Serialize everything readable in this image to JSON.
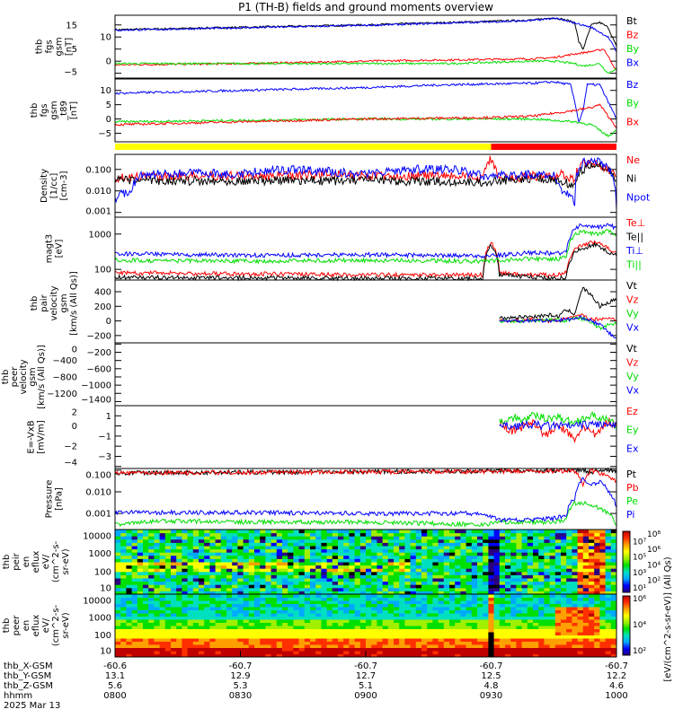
{
  "title": "P1 (TH-B) fields and ground moments overview",
  "colors": {
    "black": "#000000",
    "red": "#ff0000",
    "green": "#00dd00",
    "blue": "#0000ff",
    "yellow": "#ffff00"
  },
  "chart_data": [
    {
      "type": "line",
      "ylabel": [
        "thb",
        "fgs",
        "gsm",
        "[nT]"
      ],
      "ylim": [
        -7,
        19
      ],
      "yticks": [
        -5,
        0,
        5,
        10,
        15
      ],
      "log": false,
      "series": [
        {
          "name": "Bt",
          "color": "#000000",
          "x": [
            0,
            30,
            60,
            80,
            100,
            105,
            108,
            110,
            111,
            112,
            114,
            116,
            118,
            120
          ],
          "y": [
            13,
            14,
            15,
            16,
            17,
            18,
            17,
            16,
            8,
            5,
            15,
            16,
            14,
            6
          ]
        },
        {
          "name": "Bz",
          "color": "#ff0000",
          "x": [
            0,
            30,
            60,
            80,
            100,
            105,
            110,
            114,
            117,
            120
          ],
          "y": [
            -1.5,
            -1,
            0,
            0.5,
            1,
            1.5,
            3,
            4,
            5,
            -4
          ]
        },
        {
          "name": "By",
          "color": "#00dd00",
          "x": [
            0,
            30,
            60,
            80,
            100,
            105,
            110,
            112,
            116,
            118,
            120
          ],
          "y": [
            -1,
            -1,
            -1,
            -1,
            0,
            0,
            -1,
            -2,
            -1,
            -5,
            -3
          ]
        },
        {
          "name": "Bx",
          "color": "#0000ff",
          "x": [
            0,
            30,
            60,
            80,
            100,
            105,
            110,
            114,
            118,
            120
          ],
          "y": [
            12.8,
            13.8,
            14.8,
            15.8,
            16.8,
            17.8,
            15.8,
            14,
            10,
            4
          ]
        }
      ]
    },
    {
      "type": "line",
      "ylabel": [
        "thb",
        "fgs",
        "gsm",
        "_t89",
        "[nT]"
      ],
      "ylim": [
        -8,
        14
      ],
      "yticks": [
        -5,
        0,
        5,
        10
      ],
      "log": false,
      "series": [
        {
          "name": "Bz",
          "color": "#0000ff",
          "x": [
            0,
            30,
            60,
            80,
            100,
            105,
            109,
            110,
            111,
            112,
            113,
            116,
            118,
            120
          ],
          "y": [
            9,
            10,
            11,
            12,
            12.5,
            13,
            12,
            6,
            -1,
            3,
            12,
            12,
            6,
            0
          ]
        },
        {
          "name": "By",
          "color": "#00dd00",
          "x": [
            0,
            30,
            60,
            90,
            100,
            105,
            110,
            114,
            118,
            120
          ],
          "y": [
            -1,
            -0.5,
            0,
            0,
            0,
            -0.5,
            -1,
            -2,
            -6,
            -4
          ]
        },
        {
          "name": "Bx",
          "color": "#ff0000",
          "x": [
            0,
            30,
            60,
            90,
            100,
            105,
            110,
            114,
            116,
            120
          ],
          "y": [
            -2,
            -1,
            0,
            0.5,
            1,
            2,
            3,
            4,
            5,
            -3
          ]
        }
      ]
    },
    {
      "type": "line",
      "ylabel": [
        "Density",
        "[1/cc]",
        "[cm-3]"
      ],
      "ylim": [
        0.0006,
        0.5
      ],
      "yticks": [
        0.001,
        0.01,
        0.1
      ],
      "yticklabels": [
        "0.001",
        "0.010",
        "0.100"
      ],
      "log": true,
      "series": [
        {
          "name": "Ne",
          "color": "#ff0000",
          "x": [
            0,
            10,
            20,
            30,
            40,
            50,
            60,
            70,
            80,
            88,
            90,
            91,
            92,
            95,
            100,
            105,
            107,
            110,
            112,
            115,
            118,
            120
          ],
          "y": [
            0.04,
            0.05,
            0.05,
            0.05,
            0.05,
            0.06,
            0.05,
            0.05,
            0.05,
            0.04,
            0.3,
            0.1,
            0.04,
            0.04,
            0.05,
            0.04,
            0.06,
            0.03,
            0.2,
            0.2,
            0.1,
            0.05
          ]
        },
        {
          "name": "Ni",
          "color": "#000000",
          "x": [
            0,
            30,
            60,
            88,
            92,
            100,
            105,
            110,
            112,
            115,
            118,
            120
          ],
          "y": [
            0.03,
            0.03,
            0.03,
            0.025,
            0.03,
            0.04,
            0.03,
            0.02,
            0.1,
            0.15,
            0.08,
            0.04
          ]
        },
        {
          "name": "Npot",
          "color": "#0000ff",
          "x": [
            0,
            2,
            4,
            6,
            10,
            20,
            30,
            40,
            50,
            60,
            70,
            80,
            88,
            92,
            100,
            105,
            107,
            110,
            112,
            115,
            118,
            120
          ],
          "y": [
            0.004,
            0.008,
            0.01,
            0.05,
            0.06,
            0.07,
            0.06,
            0.1,
            0.08,
            0.06,
            0.1,
            0.1,
            0.05,
            0.05,
            0.06,
            0.05,
            0.01,
            0.003,
            0.2,
            0.25,
            0.1,
            0.001
          ]
        }
      ]
    },
    {
      "type": "line",
      "ylabel": [
        "magt3",
        "[eV]"
      ],
      "ylim": [
        50,
        3000
      ],
      "yticks": [
        100,
        1000
      ],
      "yticklabels": [
        "100",
        "1000"
      ],
      "log": true,
      "series": [
        {
          "name": "Te⊥",
          "color": "#ff0000",
          "x": [
            0,
            30,
            60,
            88,
            90,
            92,
            100,
            105,
            108,
            110,
            112,
            115,
            118,
            120
          ],
          "y": [
            80,
            75,
            70,
            70,
            600,
            80,
            70,
            70,
            80,
            400,
            500,
            600,
            400,
            300
          ]
        },
        {
          "name": "Te||",
          "color": "#000000",
          "x": [
            0,
            30,
            60,
            88,
            90,
            92,
            100,
            105,
            108,
            110,
            112,
            115,
            118,
            120
          ],
          "y": [
            60,
            58,
            55,
            55,
            500,
            70,
            60,
            55,
            60,
            300,
            400,
            500,
            300,
            250
          ]
        },
        {
          "name": "Ti⊥",
          "color": "#0000ff",
          "x": [
            0,
            30,
            60,
            88,
            92,
            100,
            105,
            108,
            110,
            112,
            115,
            118,
            120
          ],
          "y": [
            280,
            250,
            260,
            240,
            250,
            300,
            280,
            300,
            1500,
            1800,
            1500,
            1800,
            1500
          ]
        },
        {
          "name": "Ti||",
          "color": "#00dd00",
          "x": [
            0,
            30,
            60,
            88,
            92,
            100,
            105,
            108,
            110,
            112,
            115,
            118,
            120
          ],
          "y": [
            180,
            170,
            180,
            170,
            180,
            200,
            190,
            220,
            1000,
            1200,
            1000,
            1200,
            900
          ]
        }
      ]
    },
    {
      "type": "line",
      "ylabel": [
        "thb",
        "pair",
        "velocity",
        "gsm",
        "[km/s (All Qs)]"
      ],
      "ylim": [
        -300,
        560
      ],
      "yticks": [
        -200,
        0,
        200,
        400
      ],
      "log": false,
      "series": [
        {
          "name": "Vt",
          "color": "#000000",
          "x": [
            92,
            96,
            100,
            104,
            106,
            108,
            110,
            111,
            112,
            114,
            116,
            118,
            120
          ],
          "y": [
            40,
            50,
            60,
            80,
            60,
            150,
            100,
            300,
            450,
            350,
            200,
            250,
            300
          ]
        },
        {
          "name": "Vz",
          "color": "#ff0000",
          "x": [
            92,
            96,
            100,
            104,
            108,
            110,
            112,
            114,
            116,
            118,
            120
          ],
          "y": [
            10,
            0,
            20,
            0,
            30,
            50,
            80,
            20,
            30,
            40,
            20
          ]
        },
        {
          "name": "Vy",
          "color": "#00dd00",
          "x": [
            92,
            96,
            100,
            104,
            108,
            110,
            112,
            114,
            116,
            118,
            120
          ],
          "y": [
            0,
            -10,
            10,
            20,
            0,
            40,
            30,
            -20,
            -100,
            -50,
            -30
          ]
        },
        {
          "name": "Vx",
          "color": "#0000ff",
          "x": [
            92,
            96,
            100,
            104,
            108,
            110,
            112,
            114,
            116,
            118,
            120
          ],
          "y": [
            0,
            0,
            10,
            0,
            20,
            30,
            50,
            0,
            -50,
            -150,
            -250
          ]
        }
      ]
    },
    {
      "type": "line",
      "ylabel": [
        "thb",
        "peer",
        "velocity",
        "gsm",
        "[km/s (All Qs)]"
      ],
      "ylim": [
        -1500,
        30
      ],
      "yticks": [
        0,
        -200,
        -400,
        -600,
        -800,
        -1000,
        -1200,
        -1400
      ],
      "log": false,
      "series": [
        {
          "name": "Vt",
          "color": "#000000",
          "x": [],
          "y": []
        },
        {
          "name": "Vz",
          "color": "#ff0000",
          "x": [],
          "y": []
        },
        {
          "name": "Vy",
          "color": "#00dd00",
          "x": [],
          "y": []
        },
        {
          "name": "Vx",
          "color": "#0000ff",
          "x": [],
          "y": []
        }
      ]
    },
    {
      "type": "line",
      "ylabel": [
        "E=-VxB",
        "[mV/m]"
      ],
      "ylim": [
        -4.2,
        2
      ],
      "yticks": [
        -4,
        -3,
        -2,
        -1,
        0,
        1,
        2
      ],
      "log": false,
      "series": [
        {
          "name": "Ez",
          "color": "#ff0000",
          "x": [
            92,
            95,
            98,
            100,
            103,
            106,
            108,
            110,
            112,
            115,
            118,
            120
          ],
          "y": [
            0.3,
            -0.5,
            0,
            0.5,
            -1,
            0,
            -0.5,
            -1.5,
            0,
            -1,
            0.5,
            0
          ]
        },
        {
          "name": "Ey",
          "color": "#00dd00",
          "x": [
            92,
            95,
            98,
            100,
            103,
            106,
            108,
            110,
            112,
            115,
            118,
            120
          ],
          "y": [
            0.5,
            0.8,
            0.6,
            1,
            0.8,
            0.9,
            0.5,
            0.3,
            0.8,
            1,
            0.5,
            0
          ]
        },
        {
          "name": "Ex",
          "color": "#0000ff",
          "x": [
            92,
            95,
            100,
            105,
            110,
            115,
            120
          ],
          "y": [
            0,
            0,
            0.1,
            0,
            0,
            0.2,
            0
          ]
        }
      ]
    },
    {
      "type": "line",
      "ylabel": [
        "Pressure",
        "[nPa]"
      ],
      "ylim": [
        0.00018,
        0.12
      ],
      "yticks": [
        0.001,
        0.01,
        0.1
      ],
      "yticklabels": [
        "0.001",
        "0.010",
        "0.100"
      ],
      "log": true,
      "series": [
        {
          "name": "Pt",
          "color": "#000000",
          "x": [
            0,
            30,
            60,
            90,
            100,
            110,
            112,
            114,
            116,
            120
          ],
          "y": [
            0.075,
            0.08,
            0.085,
            0.09,
            0.095,
            0.1,
            0.1,
            0.08,
            0.1,
            0.09
          ]
        },
        {
          "name": "Pb",
          "color": "#ff0000",
          "x": [
            0,
            30,
            60,
            90,
            100,
            110,
            112,
            113,
            114,
            116,
            120
          ],
          "y": [
            0.072,
            0.078,
            0.083,
            0.088,
            0.093,
            0.09,
            0.02,
            0.06,
            0.1,
            0.07,
            0.03
          ]
        },
        {
          "name": "Pe",
          "color": "#00dd00",
          "x": [
            0,
            5,
            10,
            30,
            60,
            88,
            92,
            100,
            105,
            108,
            110,
            112,
            115,
            118,
            120
          ],
          "y": [
            0.0003,
            0.0004,
            0.00045,
            0.0004,
            0.0004,
            0.0003,
            0.0004,
            0.0004,
            0.0004,
            0.0005,
            0.003,
            0.003,
            0.002,
            0.001,
            0.0003
          ]
        },
        {
          "name": "Pi",
          "color": "#0000ff",
          "x": [
            0,
            30,
            60,
            88,
            92,
            100,
            105,
            108,
            110,
            112,
            114,
            116,
            118,
            120
          ],
          "y": [
            0.0011,
            0.0011,
            0.001,
            0.001,
            0.0005,
            0.0005,
            0.0006,
            0.0008,
            0.005,
            0.04,
            0.02,
            0.03,
            0.01,
            0.002
          ]
        }
      ]
    },
    {
      "type": "heatmap",
      "ylabel": [
        "thb",
        "peir",
        "en",
        "eflux",
        "eV/",
        "(cm^2-s-",
        "sr-eV)"
      ],
      "ylim": [
        6,
        20000
      ],
      "yticks": [
        10,
        100,
        1000,
        10000
      ],
      "yticklabels": [
        "10",
        "100",
        "1000",
        "10000"
      ],
      "log": true,
      "colorbar": {
        "range_exp": [
          1,
          8
        ],
        "ticklabels": [
          "10¹",
          "10²",
          "10³",
          "10⁴",
          "10⁵",
          "10⁶",
          "10⁷",
          "10⁸"
        ]
      }
    },
    {
      "type": "heatmap",
      "ylabel": [
        "thb",
        "peer",
        "en",
        "eflux",
        "eV/",
        "(cm^2-s-",
        "sr-eV)"
      ],
      "ylim": [
        6,
        20000
      ],
      "yticks": [
        10,
        100,
        1000,
        10000
      ],
      "yticklabels": [
        "10",
        "100",
        "1000",
        "10000"
      ],
      "log": true,
      "colorbar": {
        "range_exp": [
          1,
          7
        ],
        "ticklabels": [
          "10²",
          "10⁴",
          "10⁶"
        ]
      }
    }
  ],
  "colorbar_label": "[eV/(cm^2-s-sr-eV)] (All Qs)",
  "mode_bar": {
    "segments": [
      {
        "from": 0,
        "to": 90,
        "color": "#ffff00"
      },
      {
        "from": 90,
        "to": 120,
        "color": "#ff0000"
      }
    ]
  },
  "xaxis": {
    "range_minutes": [
      0,
      120
    ],
    "tick_minutes": [
      0,
      30,
      60,
      90,
      120
    ],
    "rows": [
      {
        "label": "thb_X-GSM",
        "values": [
          "-60.6",
          "-60.7",
          "-60.7",
          "-60.7",
          "-60.7"
        ]
      },
      {
        "label": "thb_Y-GSM",
        "values": [
          "13.1",
          "12.9",
          "12.7",
          "12.5",
          "12.2"
        ]
      },
      {
        "label": "thb_Z-GSM",
        "values": [
          "5.6",
          "5.3",
          "5.1",
          "4.8",
          "4.6"
        ]
      },
      {
        "label": "hhmm",
        "values": [
          "0800",
          "0830",
          "0900",
          "0930",
          "1000"
        ]
      }
    ],
    "date": "2025 Mar 13"
  }
}
